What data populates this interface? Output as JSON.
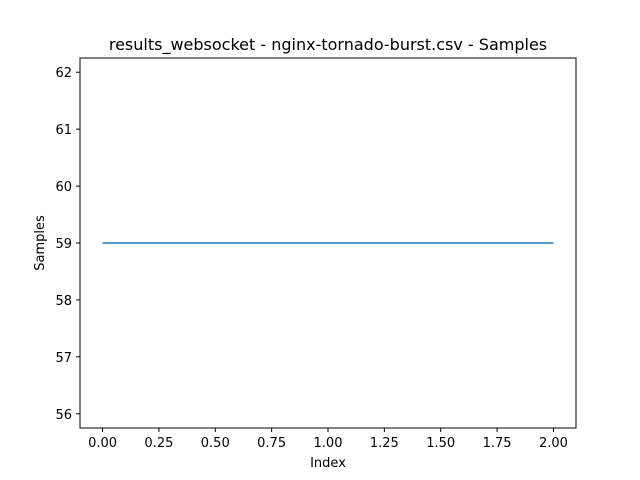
{
  "chart_data": {
    "type": "line",
    "title": "results_websocket - nginx-tornado-burst.csv - Samples",
    "xlabel": "Index",
    "ylabel": "Samples",
    "xlim": [
      -0.1,
      2.1
    ],
    "ylim": [
      55.75,
      62.25
    ],
    "x_ticks": [
      0.0,
      0.25,
      0.5,
      0.75,
      1.0,
      1.25,
      1.5,
      1.75,
      2.0
    ],
    "x_tick_labels": [
      "0.00",
      "0.25",
      "0.50",
      "0.75",
      "1.00",
      "1.25",
      "1.50",
      "1.75",
      "2.00"
    ],
    "y_ticks": [
      56,
      57,
      58,
      59,
      60,
      61,
      62
    ],
    "y_tick_labels": [
      "56",
      "57",
      "58",
      "59",
      "60",
      "61",
      "62"
    ],
    "grid": false,
    "series": [
      {
        "color": "#1f77b4",
        "x": [
          0,
          1,
          2
        ],
        "y": [
          59,
          59,
          59
        ]
      }
    ]
  }
}
